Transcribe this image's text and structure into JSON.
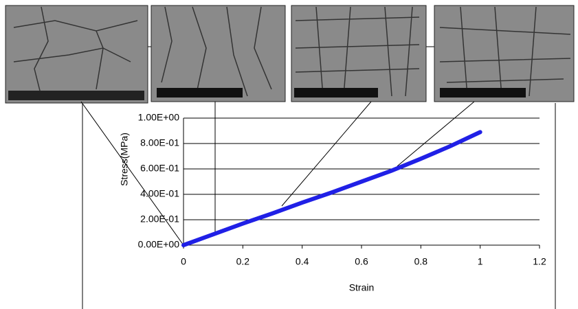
{
  "chart_data": {
    "type": "line",
    "xlabel": "Strain",
    "ylabel": "Stress(MPa)",
    "x": [
      0,
      0.1,
      0.2,
      0.3,
      0.4,
      0.5,
      0.6,
      0.7,
      0.8,
      0.9,
      1.0
    ],
    "series": [
      {
        "color": "#2020e6",
        "values": [
          0,
          0.085,
          0.17,
          0.25,
          0.335,
          0.415,
          0.5,
          0.585,
          0.68,
          0.78,
          0.89
        ]
      }
    ],
    "xlim": [
      0,
      1.2
    ],
    "xticks": [
      0,
      0.2,
      0.4,
      0.6,
      0.8,
      1,
      1.2
    ],
    "ylim": [
      0,
      1
    ],
    "yticks": [
      {
        "value": 0,
        "label": "0.00E+00"
      },
      {
        "value": 0.2,
        "label": "2.00E-01"
      },
      {
        "value": 0.4,
        "label": "4.00E-01"
      },
      {
        "value": 0.6,
        "label": "6.00E-01"
      },
      {
        "value": 0.8,
        "label": "8.00E-01"
      },
      {
        "value": 1,
        "label": "1.00E+00"
      }
    ],
    "grid": true
  }
}
